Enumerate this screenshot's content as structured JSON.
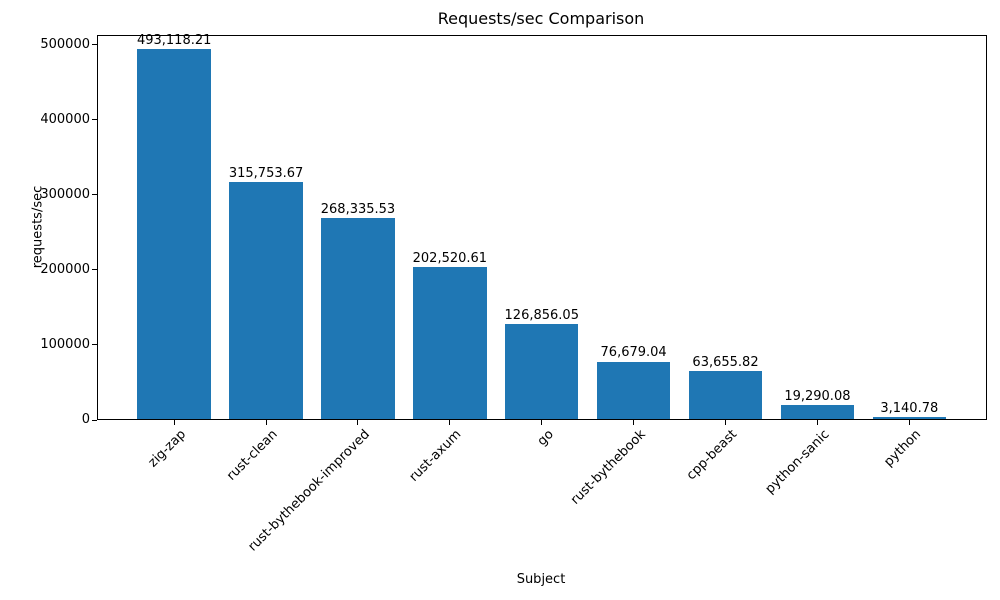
{
  "chart_data": {
    "type": "bar",
    "title": "Requests/sec Comparison",
    "xlabel": "Subject",
    "ylabel": "requests/sec",
    "categories": [
      "zig-zap",
      "rust-clean",
      "rust-bythebook-improved",
      "rust-axum",
      "go",
      "rust-bythebook",
      "cpp-beast",
      "python-sanic",
      "python"
    ],
    "values": [
      493118.21,
      315753.67,
      268335.53,
      202520.61,
      126856.05,
      76679.04,
      63655.82,
      19290.08,
      3140.78
    ],
    "value_labels": [
      "493,118.21",
      "315,753.67",
      "268,335.53",
      "202,520.61",
      "126,856.05",
      "76,679.04",
      "63,655.82",
      "19,290.08",
      "3,140.78"
    ],
    "yticks": [
      0,
      100000,
      200000,
      300000,
      400000,
      500000
    ],
    "ytick_labels": [
      "0",
      "100000",
      "200000",
      "300000",
      "400000",
      "500000"
    ],
    "ylim": [
      0,
      513333
    ],
    "bar_color": "#1f77b4",
    "grid": false,
    "legend_position": "none",
    "xtick_rotation_deg": 45
  }
}
